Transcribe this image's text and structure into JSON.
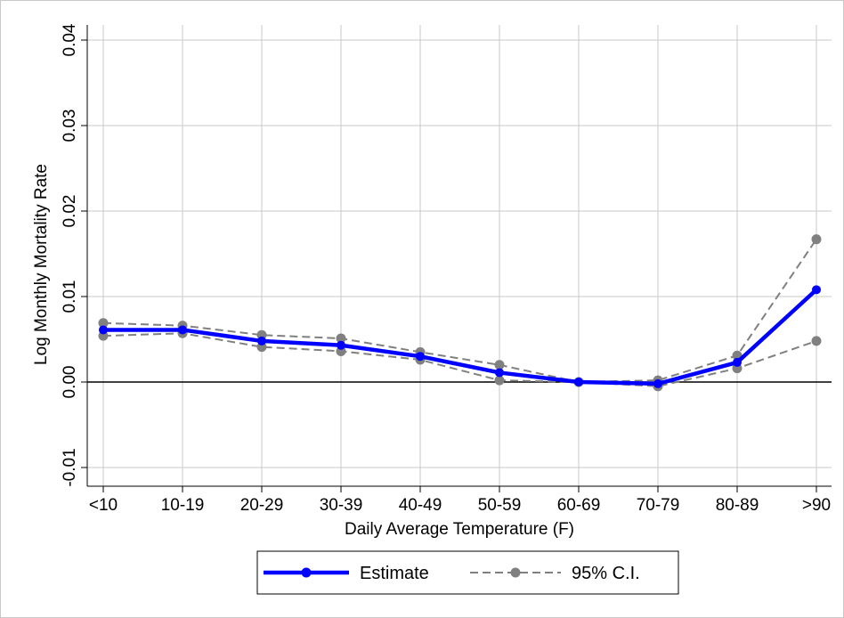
{
  "chart_data": {
    "type": "line",
    "title": "",
    "xlabel": "Daily Average Temperature (F)",
    "ylabel": "Log Monthly Mortality Rate",
    "categories": [
      "<10",
      "10-19",
      "20-29",
      "30-39",
      "40-49",
      "50-59",
      "60-69",
      "70-79",
      "80-89",
      ">90"
    ],
    "y_ticks": [
      "-0.01",
      "0.00",
      "0.01",
      "0.02",
      "0.03",
      "0.04"
    ],
    "ylim": [
      -0.012,
      0.04
    ],
    "grid": true,
    "legend_position": "bottom",
    "series": [
      {
        "name": "Estimate",
        "color": "#0000ff",
        "style": "solid",
        "values": [
          0.0061,
          0.0061,
          0.0048,
          0.0043,
          0.003,
          0.0011,
          0.0,
          -0.0002,
          0.0023,
          0.0108
        ]
      },
      {
        "name": "95% C.I.",
        "color": "#808080",
        "style": "dashed",
        "legend": true,
        "values": [
          0.0069,
          0.0066,
          0.0055,
          0.0051,
          0.0035,
          0.002,
          0.0,
          0.0002,
          0.0031,
          0.0167
        ]
      },
      {
        "name": "",
        "color": "#808080",
        "style": "dashed",
        "legend": false,
        "values": [
          0.0054,
          0.0057,
          0.0041,
          0.0036,
          0.0026,
          0.0002,
          0.0,
          -0.0005,
          0.0016,
          0.0048
        ]
      }
    ]
  }
}
